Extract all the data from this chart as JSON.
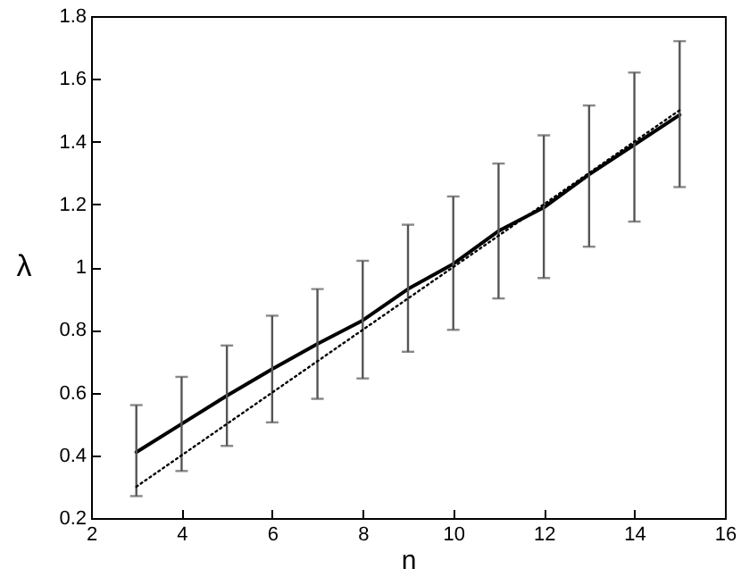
{
  "chart_data": {
    "type": "line",
    "xlabel": "n",
    "ylabel": "λ",
    "x": [
      3,
      4,
      5,
      6,
      7,
      8,
      9,
      10,
      11,
      12,
      13,
      14,
      15
    ],
    "series": [
      {
        "color": "#000000",
        "line_style": "solid",
        "values": [
          0.41,
          0.5,
          0.59,
          0.675,
          0.755,
          0.83,
          0.93,
          1.01,
          1.115,
          1.19,
          1.295,
          1.39,
          1.485
        ],
        "errors": [
          [
            0.27,
            0.56
          ],
          [
            0.35,
            0.65
          ],
          [
            0.43,
            0.75
          ],
          [
            0.505,
            0.845
          ],
          [
            0.58,
            0.93
          ],
          [
            0.645,
            1.02
          ],
          [
            0.73,
            1.135
          ],
          [
            0.8,
            1.225
          ],
          [
            0.9,
            1.33
          ],
          [
            0.965,
            1.42
          ],
          [
            1.065,
            1.515
          ],
          [
            1.145,
            1.62
          ],
          [
            1.255,
            1.72
          ]
        ]
      },
      {
        "color": "#000000",
        "line_style": "dotted",
        "x": [
          3,
          15
        ],
        "values": [
          0.3,
          1.5
        ]
      }
    ],
    "xlim": [
      2,
      16
    ],
    "xticks": [
      2,
      4,
      6,
      8,
      10,
      12,
      14,
      16
    ],
    "ylim": [
      0.2,
      1.8
    ],
    "yticks": [
      0.2,
      0.4,
      0.6,
      0.8,
      1,
      1.2,
      1.4,
      1.6,
      1.8
    ],
    "grid": false,
    "marker": "none"
  }
}
